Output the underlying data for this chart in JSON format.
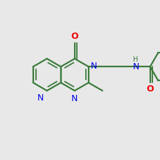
{
  "bg_color": "#e8e8e8",
  "bond_color": "#3a7a3a",
  "n_color": "#0000ee",
  "o_color": "#ee0000",
  "lw": 1.6,
  "lw2": 1.3,
  "BL": 0.3
}
